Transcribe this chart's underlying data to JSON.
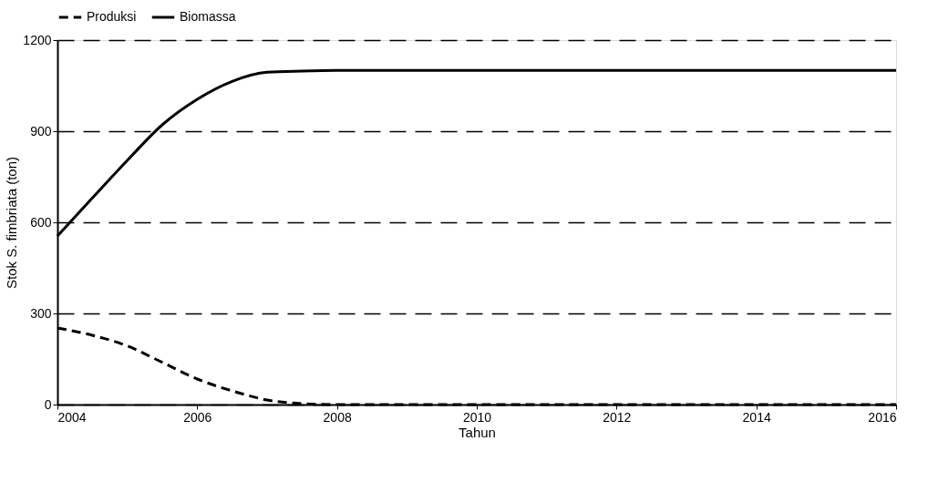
{
  "chart_data": {
    "type": "line",
    "xlabel": "Tahun",
    "ylabel": "Stok S. fimbriata (ton)",
    "x": [
      2004,
      2004.5,
      2005,
      2005.5,
      2006,
      2006.5,
      2007,
      2007.5,
      2008,
      2009,
      2010,
      2011,
      2012,
      2013,
      2014,
      2015,
      2016
    ],
    "series": [
      {
        "name": "Produksi",
        "color": "#000000",
        "line_style": "dashed",
        "values": [
          252,
          228,
          193,
          139,
          84,
          45,
          15,
          3,
          0,
          0,
          0,
          0,
          0,
          0,
          0,
          0,
          0
        ]
      },
      {
        "name": "Biomassa",
        "color": "#000000",
        "line_style": "solid",
        "values": [
          555,
          680,
          804,
          921,
          1005,
          1064,
          1094,
          1098,
          1100,
          1100,
          1100,
          1100,
          1100,
          1100,
          1100,
          1100,
          1100
        ]
      }
    ],
    "xlim": [
      2004,
      2016
    ],
    "xticks": [
      2004,
      2006,
      2008,
      2010,
      2012,
      2014,
      2016
    ],
    "ylim": [
      0,
      1200
    ],
    "yticks": [
      0,
      300,
      600,
      900,
      1200
    ],
    "grid": "y",
    "legend": "top",
    "marker": "none"
  }
}
